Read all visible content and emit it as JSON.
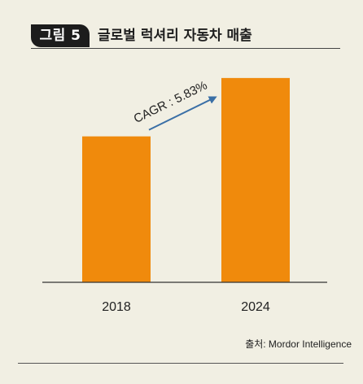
{
  "figure": {
    "badge": "그림 5",
    "title": "글로벌 럭셔리 자동차 매출"
  },
  "source": "출처: Mordor Intelligence",
  "chart_data": {
    "type": "bar",
    "categories": [
      "2018",
      "2024"
    ],
    "values": [
      1.0,
      1.4
    ],
    "annotation": "CAGR : 5.83%",
    "bar_color": "#f08a0c",
    "arrow_color": "#3a6fa6",
    "grid": false,
    "ylim": [
      0,
      1.6
    ]
  }
}
